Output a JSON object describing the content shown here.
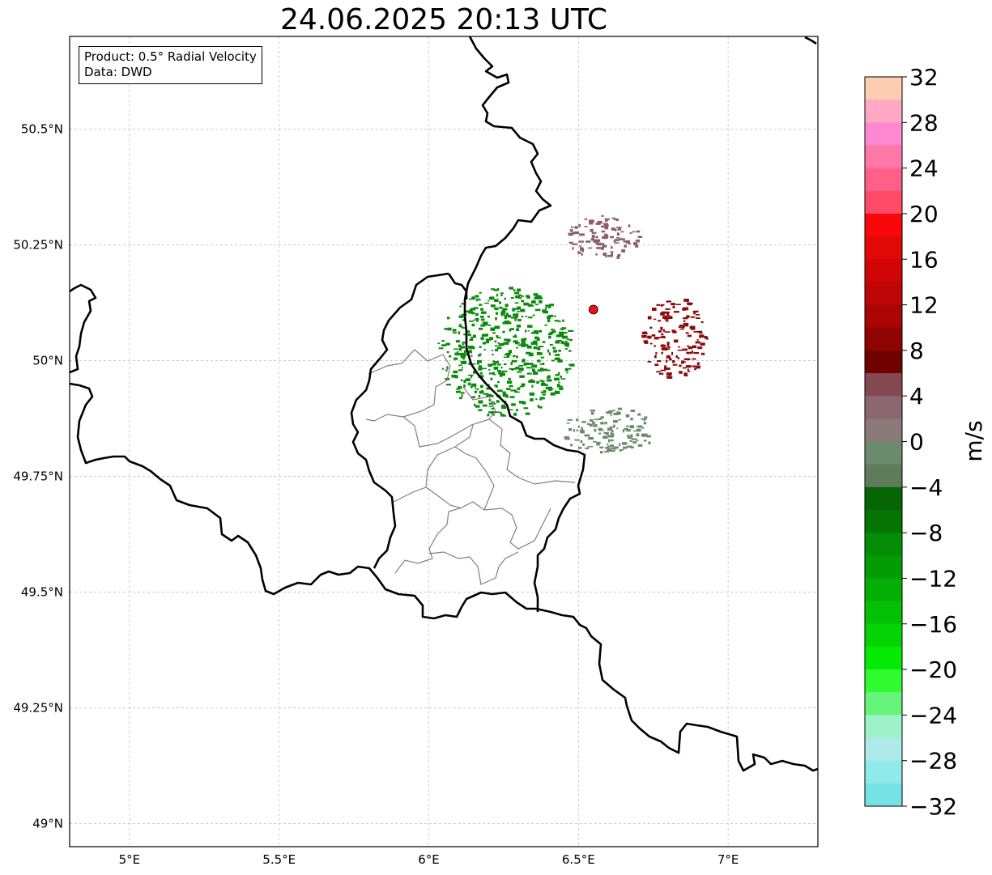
{
  "title": "24.06.2025 20:13 UTC",
  "info": {
    "product": "Product: 0.5° Radial Velocity",
    "data": "Data: DWD"
  },
  "map": {
    "lon_range": [
      4.8,
      7.3
    ],
    "lat_range": [
      48.95,
      50.7
    ],
    "x_ticks": [
      {
        "value": 5.0,
        "label": "5°E"
      },
      {
        "value": 5.5,
        "label": "5.5°E"
      },
      {
        "value": 6.0,
        "label": "6°E"
      },
      {
        "value": 6.5,
        "label": "6.5°E"
      },
      {
        "value": 7.0,
        "label": "7°E"
      }
    ],
    "y_ticks": [
      {
        "value": 50.5,
        "label": "50.5°N"
      },
      {
        "value": 50.25,
        "label": "50.25°N"
      },
      {
        "value": 50.0,
        "label": "50°N"
      },
      {
        "value": 49.75,
        "label": "49.75°N"
      },
      {
        "value": 49.5,
        "label": "49.5°N"
      },
      {
        "value": 49.25,
        "label": "49.25°N"
      },
      {
        "value": 49.0,
        "label": "49°N"
      }
    ],
    "grid": true,
    "radar_site": {
      "lon": 6.55,
      "lat": 50.11,
      "color": "#ee1111"
    },
    "velocity_fields": [
      {
        "name": "inbound",
        "color": "#0a8a0a",
        "center": [
          6.25,
          50.02
        ],
        "radius_deg": [
          0.23,
          0.14
        ],
        "value_ms": -10
      },
      {
        "name": "outbound",
        "color": "#8b0a0a",
        "center": [
          6.82,
          50.05
        ],
        "radius_deg": [
          0.11,
          0.09
        ],
        "value_ms": 10
      },
      {
        "name": "near-zero-north",
        "color": "#8a5e66",
        "center": [
          6.58,
          50.27
        ],
        "radius_deg": [
          0.12,
          0.05
        ],
        "value_ms": 3
      },
      {
        "name": "near-zero-south",
        "color": "#6a8a6a",
        "center": [
          6.6,
          49.85
        ],
        "radius_deg": [
          0.16,
          0.05
        ],
        "value_ms": -2
      }
    ]
  },
  "colorbar": {
    "unit": "m/s",
    "min": -32,
    "max": 32,
    "tick_values": [
      32,
      28,
      24,
      20,
      16,
      12,
      8,
      4,
      0,
      -4,
      -8,
      -12,
      -16,
      -20,
      -24,
      -28,
      -32
    ],
    "tick_labels": [
      "32",
      "28",
      "24",
      "20",
      "16",
      "12",
      "8",
      "4",
      "0",
      "−4",
      "−8",
      "−12",
      "−16",
      "−20",
      "−24",
      "−28",
      "−32"
    ],
    "levels_top_to_bottom": [
      "#ffcdb2",
      "#ffa9c5",
      "#ff88d0",
      "#ff78a8",
      "#ff6088",
      "#ff4a68",
      "#f80808",
      "#e20808",
      "#d00606",
      "#be0606",
      "#aa0404",
      "#900303",
      "#700202",
      "#844850",
      "#8a6670",
      "#8a7a78",
      "#6c8a6c",
      "#5e7c5a",
      "#066606",
      "#047404",
      "#048c04",
      "#049c04",
      "#04ae04",
      "#04c004",
      "#04d404",
      "#04ec04",
      "#30fa30",
      "#66f47a",
      "#9ef2c8",
      "#aeeaea",
      "#90eaea",
      "#76e2e6"
    ]
  }
}
